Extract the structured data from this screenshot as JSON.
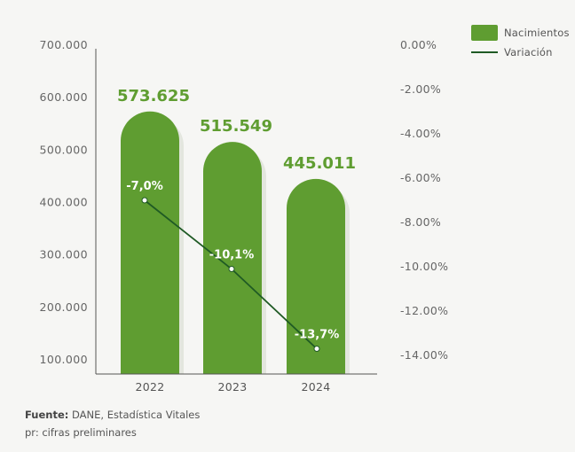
{
  "chart_data": {
    "type": "bar",
    "categories": [
      "2022",
      "2023",
      "2024"
    ],
    "series": [
      {
        "name": "Nacimientos",
        "type": "bar",
        "axis": "left",
        "values": [
          573625,
          515549,
          445011
        ],
        "labels": [
          "573.625",
          "515.549",
          "445.011"
        ]
      },
      {
        "name": "Variación",
        "type": "line",
        "axis": "right",
        "values": [
          -7.0,
          -10.1,
          -13.7
        ],
        "labels": [
          "-7,0%",
          "-10,1%",
          "-13,7%"
        ]
      }
    ],
    "y_left": {
      "ticks": [
        700000,
        600000,
        500000,
        400000,
        300000,
        200000,
        100000
      ],
      "tick_labels": [
        "700.000",
        "600.000",
        "500.000",
        "400.000",
        "300.000",
        "200.000",
        "100.000"
      ]
    },
    "y_right": {
      "ticks": [
        0,
        -2,
        -4,
        -6,
        -8,
        -10,
        -12,
        -14
      ],
      "tick_labels": [
        "0.00%",
        "-2.00%",
        "-4.00%",
        "-6.00%",
        "-8.00%",
        "-10.00%",
        "-12.00%",
        "-14.00%"
      ]
    },
    "legend_position": "top-right",
    "grid": false
  },
  "colors": {
    "bar": "#5f9d31",
    "bar_shadow": "#e3e6de",
    "bar_label": "#5f9d31",
    "line": "#1f5a24",
    "point_fill": "#ffffff",
    "axis_text": "#666666",
    "axis_line": "#555555"
  },
  "legend": {
    "bar_label": "Nacimientos",
    "line_label": "Variación"
  },
  "footer": {
    "source_bold": "Fuente:",
    "source_text": " DANE, Estadística Vitales",
    "note": "pr: cifras preliminares"
  }
}
